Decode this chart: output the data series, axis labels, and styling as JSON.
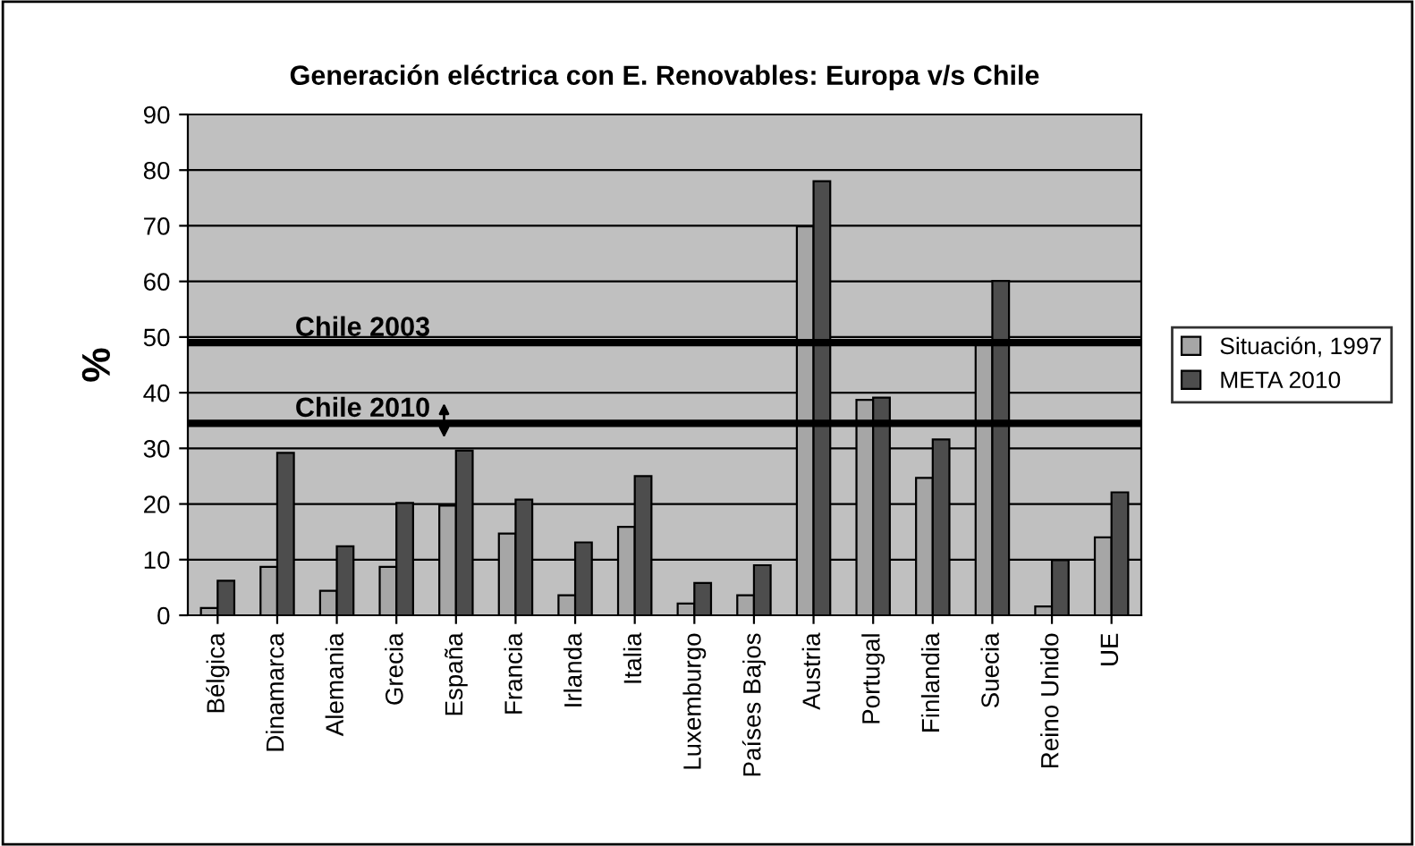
{
  "chart_data": {
    "type": "bar",
    "title": "Generación eléctrica con E. Renovables: Europa v/s Chile",
    "ylabel": "%",
    "categories": [
      "Bélgica",
      "Dinamarca",
      "Alemania",
      "Grecia",
      "España",
      "Francia",
      "Irlanda",
      "Italia",
      "Luxemburgo",
      "Países Bajos",
      "Austria",
      "Portugal",
      "Finlandia",
      "Suecia",
      "Reino Unido",
      "UE"
    ],
    "series": [
      {
        "name": "Situación, 1997",
        "color": "#a6a6a6",
        "values": [
          1.3,
          8.7,
          4.4,
          8.7,
          19.7,
          14.7,
          3.6,
          15.9,
          2.1,
          3.6,
          69.9,
          38.7,
          24.7,
          48.8,
          1.6,
          14.0
        ]
      },
      {
        "name": "META 2010",
        "color": "#4d4d4d",
        "values": [
          6.2,
          29.2,
          12.4,
          20.2,
          29.6,
          20.8,
          13.1,
          25.0,
          5.8,
          9.0,
          78.0,
          39.1,
          31.6,
          60.1,
          9.9,
          22.1
        ]
      }
    ],
    "ylim": [
      0,
      90
    ],
    "yticks": [
      0,
      10,
      20,
      30,
      40,
      50,
      60,
      70,
      80,
      90
    ],
    "grid": "y",
    "legend": "right",
    "ref_lines": [
      {
        "axis": "y",
        "value": 49.0,
        "label": "Chile 2003",
        "color": "#000000"
      },
      {
        "axis": "y",
        "value": 34.5,
        "label": "Chile 2010",
        "color": "#000000"
      }
    ]
  }
}
